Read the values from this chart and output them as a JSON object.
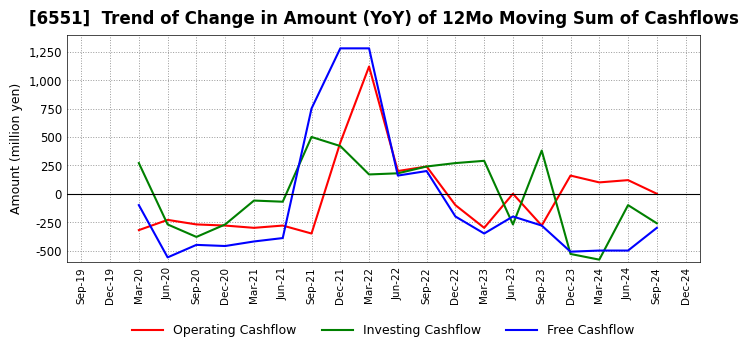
{
  "title": "[6551]  Trend of Change in Amount (YoY) of 12Mo Moving Sum of Cashflows",
  "ylabel": "Amount (million yen)",
  "ylim": [
    -600,
    1400
  ],
  "yticks": [
    -500,
    -250,
    0,
    250,
    500,
    750,
    1000,
    1250
  ],
  "x_labels": [
    "Sep-19",
    "Dec-19",
    "Mar-20",
    "Jun-20",
    "Sep-20",
    "Dec-20",
    "Mar-21",
    "Jun-21",
    "Sep-21",
    "Dec-21",
    "Mar-22",
    "Jun-22",
    "Sep-22",
    "Dec-22",
    "Mar-23",
    "Jun-23",
    "Sep-23",
    "Dec-23",
    "Mar-24",
    "Jun-24",
    "Sep-24",
    "Dec-24"
  ],
  "operating": [
    null,
    null,
    -320,
    -230,
    -270,
    -280,
    -300,
    -280,
    -350,
    450,
    1120,
    200,
    240,
    -100,
    -300,
    0,
    -280,
    160,
    100,
    120,
    0,
    null
  ],
  "investing": [
    null,
    null,
    270,
    -270,
    -380,
    -270,
    -60,
    -70,
    500,
    420,
    170,
    180,
    240,
    270,
    290,
    -270,
    380,
    -530,
    -580,
    -100,
    -260,
    null
  ],
  "free": [
    null,
    null,
    -100,
    -560,
    -450,
    -460,
    -420,
    -390,
    750,
    1280,
    1280,
    160,
    200,
    -200,
    -350,
    -200,
    -280,
    -510,
    -500,
    -500,
    -300,
    null
  ],
  "colors": {
    "operating": "#ff0000",
    "investing": "#008000",
    "free": "#0000ff"
  },
  "legend_labels": [
    "Operating Cashflow",
    "Investing Cashflow",
    "Free Cashflow"
  ],
  "background_color": "#ffffff",
  "title_fontsize": 12,
  "axis_fontsize": 9
}
